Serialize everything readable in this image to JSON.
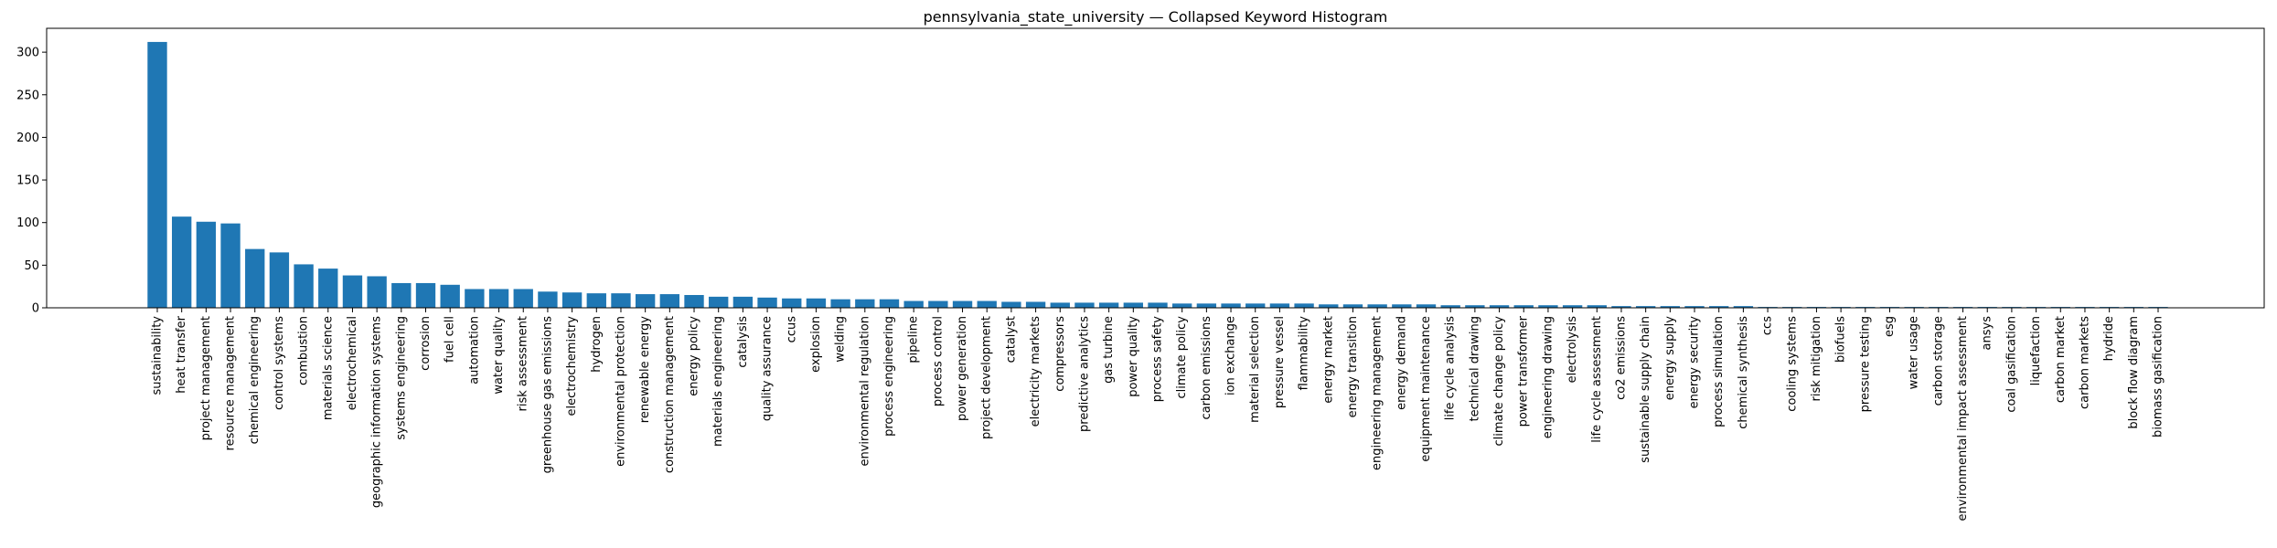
{
  "chart_data": {
    "type": "bar",
    "title": "pennsylvania_state_university — Collapsed Keyword Histogram",
    "xlabel": "",
    "ylabel": "",
    "ylim": [
      0,
      328
    ],
    "yticks": [
      0,
      50,
      100,
      150,
      200,
      250,
      300
    ],
    "grid": false,
    "color": "#1f77b4",
    "categories": [
      "sustainability",
      "heat transfer",
      "project management",
      "resource management",
      "chemical engineering",
      "control systems",
      "combustion",
      "materials science",
      "electrochemical",
      "geographic information systems",
      "systems engineering",
      "corrosion",
      "fuel cell",
      "automation",
      "water quality",
      "risk assessment",
      "greenhouse gas emissions",
      "electrochemistry",
      "hydrogen",
      "environmental protection",
      "renewable energy",
      "construction management",
      "energy policy",
      "materials engineering",
      "catalysis",
      "quality assurance",
      "ccus",
      "explosion",
      "welding",
      "environmental regulation",
      "process engineering",
      "pipeline",
      "process control",
      "power generation",
      "project development",
      "catalyst",
      "electricity markets",
      "compressors",
      "predictive analytics",
      "gas turbine",
      "power quality",
      "process safety",
      "climate policy",
      "carbon emissions",
      "ion exchange",
      "material selection",
      "pressure vessel",
      "flammability",
      "energy market",
      "energy transition",
      "engineering management",
      "energy demand",
      "equipment maintenance",
      "life cycle analysis",
      "technical drawing",
      "climate change policy",
      "power transformer",
      "engineering drawing",
      "electrolysis",
      "life cycle assessment",
      "co2 emissions",
      "sustainable supply chain",
      "energy supply",
      "energy security",
      "process simulation",
      "chemical synthesis",
      "ccs",
      "cooling systems",
      "risk mitigation",
      "biofuels",
      "pressure testing",
      "esg",
      "water usage",
      "carbon storage",
      "environmental impact assessment",
      "ansys",
      "coal gasification",
      "liquefaction",
      "carbon market",
      "carbon markets",
      "hydride",
      "block flow diagram",
      "biomass gasification"
    ],
    "values": [
      312,
      107,
      101,
      99,
      69,
      65,
      51,
      46,
      38,
      37,
      29,
      29,
      27,
      22,
      22,
      22,
      19,
      18,
      17,
      17,
      16,
      16,
      15,
      13,
      13,
      12,
      11,
      11,
      10,
      10,
      10,
      8,
      8,
      8,
      8,
      7,
      7,
      6,
      6,
      6,
      6,
      6,
      5,
      5,
      5,
      5,
      5,
      5,
      4,
      4,
      4,
      4,
      4,
      3,
      3,
      3,
      3,
      3,
      3,
      3,
      2,
      2,
      2,
      2,
      2,
      2,
      1,
      1,
      1,
      1,
      1,
      1,
      1,
      1,
      1,
      1,
      1,
      1,
      1,
      1,
      1,
      1,
      1
    ]
  }
}
